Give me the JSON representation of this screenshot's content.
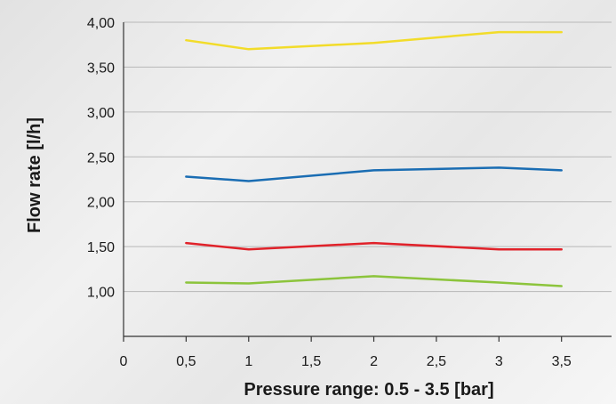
{
  "chart_data": {
    "type": "line",
    "title": "",
    "xlabel": "Pressure range: 0.5 - 3.5 [bar]",
    "ylabel": "Flow rate [l/h]",
    "xlim": [
      0,
      3.9
    ],
    "ylim": [
      0.5,
      4.0
    ],
    "x_ticks": [
      0,
      0.5,
      1,
      1.5,
      2,
      2.5,
      3,
      3.5
    ],
    "x_tick_labels": [
      "0",
      "0,5",
      "1",
      "1,5",
      "2",
      "2,5",
      "3",
      "3,5"
    ],
    "y_ticks": [
      1.0,
      1.5,
      2.0,
      2.5,
      3.0,
      3.5,
      4.0
    ],
    "y_tick_labels": [
      "1,00",
      "1,50",
      "2,00",
      "2,50",
      "3,00",
      "3,50",
      "4,00"
    ],
    "grid": true,
    "legend": "none",
    "x": [
      0.5,
      1,
      2,
      3,
      3.5
    ],
    "series": [
      {
        "color": "#f2dc2a",
        "values": [
          3.8,
          3.7,
          3.77,
          3.89,
          3.89
        ]
      },
      {
        "color": "#1a6db3",
        "values": [
          2.28,
          2.23,
          2.35,
          2.38,
          2.35
        ]
      },
      {
        "color": "#e0222a",
        "values": [
          1.54,
          1.47,
          1.54,
          1.47,
          1.47
        ]
      },
      {
        "color": "#8cc43c",
        "values": [
          1.1,
          1.09,
          1.17,
          1.1,
          1.06
        ]
      }
    ]
  }
}
